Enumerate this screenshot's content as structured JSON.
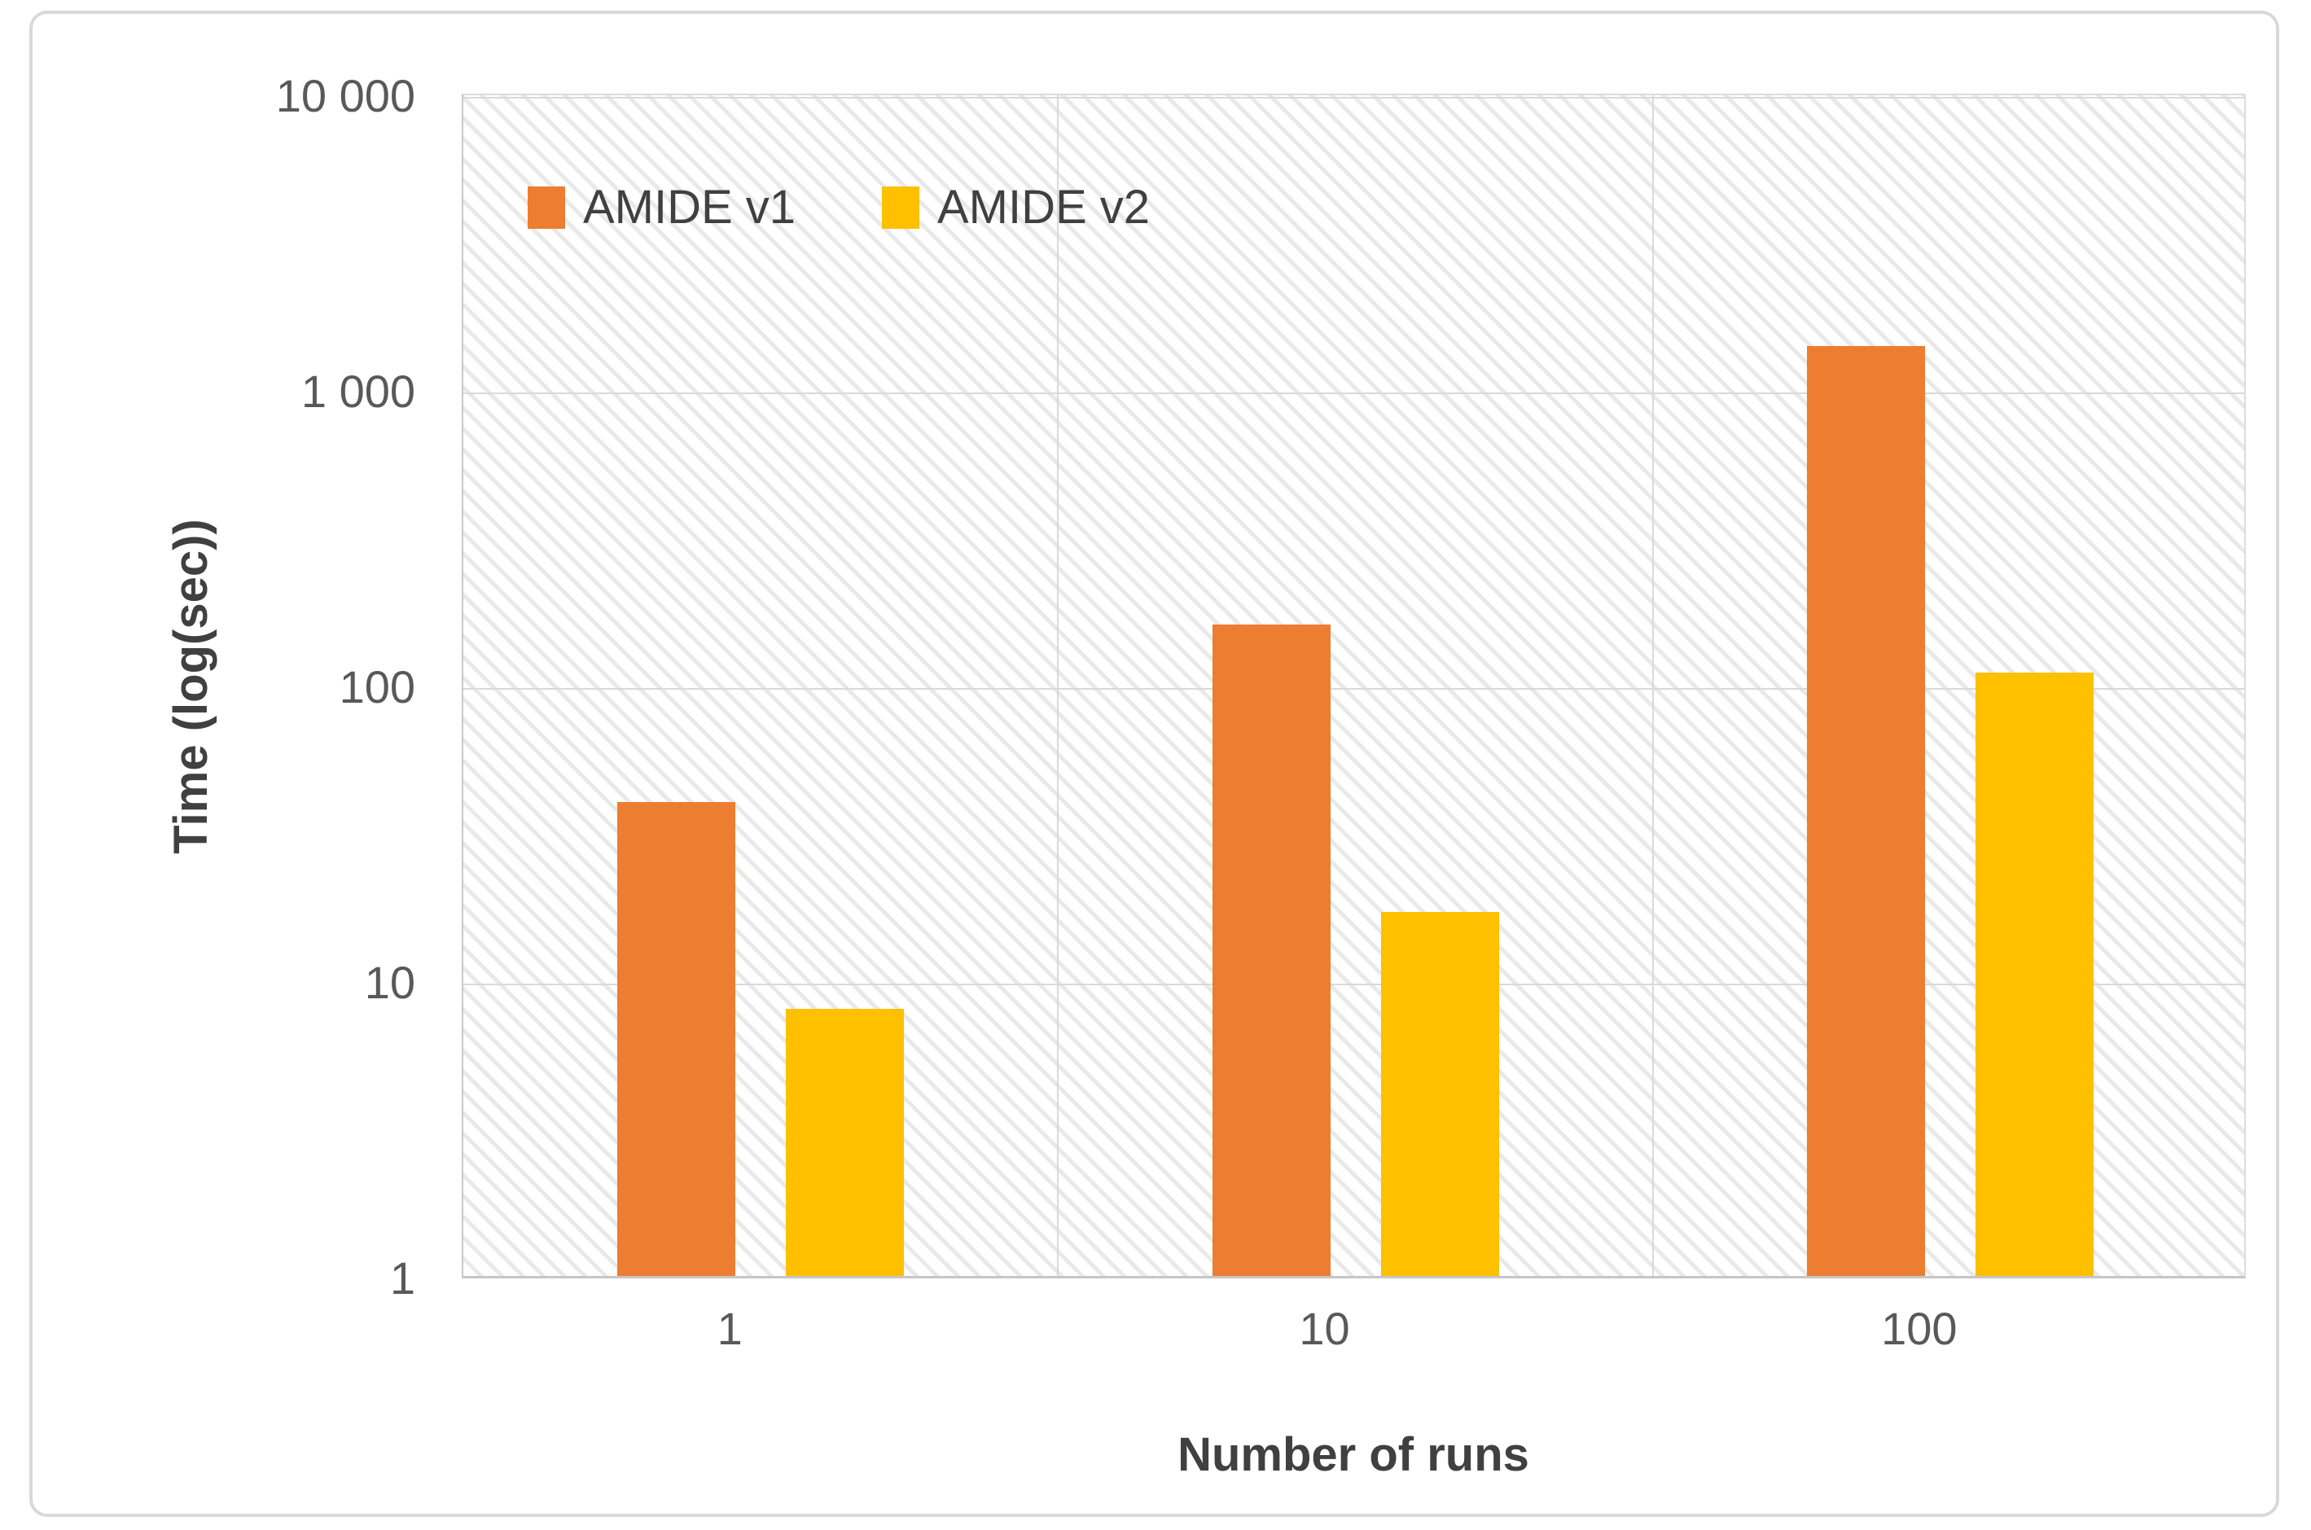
{
  "chart_data": {
    "type": "bar",
    "title": "",
    "categories": [
      "1",
      "10",
      "100"
    ],
    "series": [
      {
        "name": "AMIDE v1",
        "color": "#ED7D31",
        "values": [
          40,
          160,
          1400
        ]
      },
      {
        "name": "AMIDE v2",
        "color": "#FFC000",
        "values": [
          8,
          17,
          110
        ]
      }
    ],
    "xlabel": "Number of runs",
    "ylabel": "Time (log(sec))",
    "y_scale": "log",
    "ylim": [
      1,
      10000
    ],
    "y_ticks": [
      {
        "label": "10 000",
        "value": 10000
      },
      {
        "label": "1 000",
        "value": 1000
      },
      {
        "label": "100",
        "value": 100
      },
      {
        "label": "10",
        "value": 10
      },
      {
        "label": "1",
        "value": 1
      }
    ],
    "grid": "horizontal decade gridlines + vertical category separators",
    "legend_position": "top-left-inside",
    "plot_background": "light diagonal hatch",
    "colors": {
      "gridline": "#d9d9d9",
      "axis_line": "#c6c6c6",
      "tick_text": "#595959",
      "title_text": "#404040",
      "frame_border": "#d9d9d9",
      "hatch_line": "#e9e9e9"
    }
  }
}
